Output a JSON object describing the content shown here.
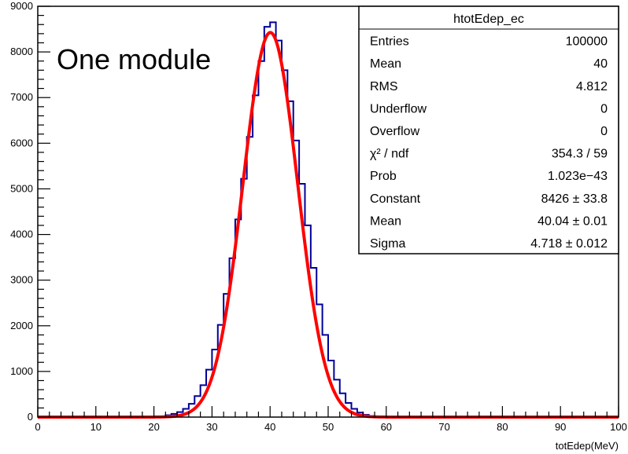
{
  "chart_data": {
    "type": "histogram",
    "title": "",
    "xlabel": "totEdep(MeV)",
    "ylabel": "",
    "xlim": [
      0,
      100
    ],
    "ylim": [
      0,
      9000
    ],
    "x_ticks": [
      0,
      10,
      20,
      30,
      40,
      50,
      60,
      70,
      80,
      90,
      100
    ],
    "y_ticks": [
      0,
      1000,
      2000,
      3000,
      4000,
      5000,
      6000,
      7000,
      8000,
      9000
    ],
    "grid": false,
    "annotation": "One module",
    "colors": {
      "histogram": "#000099",
      "fit": "#ff0000"
    },
    "histogram": {
      "name": "htotEdep_ec",
      "bin_width": 1,
      "bin_low_edges": [
        22,
        23,
        24,
        25,
        26,
        27,
        28,
        29,
        30,
        31,
        32,
        33,
        34,
        35,
        36,
        37,
        38,
        39,
        40,
        41,
        42,
        43,
        44,
        45,
        46,
        47,
        48,
        49,
        50,
        51,
        52,
        53,
        54,
        55,
        56,
        57
      ],
      "counts": [
        40,
        70,
        110,
        180,
        290,
        460,
        700,
        1040,
        1480,
        2020,
        2700,
        3480,
        4330,
        5220,
        6140,
        7050,
        7800,
        8550,
        8650,
        8250,
        7600,
        6920,
        6060,
        5110,
        4200,
        3270,
        2470,
        1800,
        1240,
        820,
        520,
        310,
        180,
        100,
        50,
        25
      ]
    },
    "fit": {
      "function": "gaus",
      "constant": 8426,
      "mean": 40.04,
      "sigma": 4.718
    },
    "stats_box": {
      "title": "htotEdep_ec",
      "rows": [
        {
          "label": "Entries",
          "value": "100000"
        },
        {
          "label": "Mean",
          "value": "40"
        },
        {
          "label": "RMS",
          "value": "4.812"
        },
        {
          "label": "Underflow",
          "value": "0"
        },
        {
          "label": "Overflow",
          "value": "0"
        },
        {
          "label": "χ² / ndf",
          "value": "354.3 / 59"
        },
        {
          "label": "Prob",
          "value": "1.023e−43"
        },
        {
          "label": "Constant",
          "value": "8426 ± 33.8"
        },
        {
          "label": "Mean",
          "value": "40.04 ± 0.01"
        },
        {
          "label": "Sigma",
          "value": "4.718 ± 0.012"
        }
      ]
    }
  }
}
